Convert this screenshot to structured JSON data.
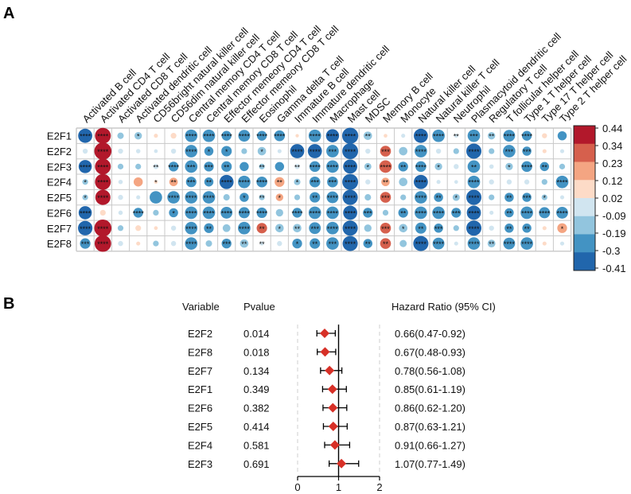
{
  "panel_a_label": "A",
  "panel_b_label": "B",
  "colors": {
    "grid": "#c8c8c8",
    "background": "#ffffff",
    "scale": [
      "#b2182b",
      "#d6604d",
      "#f4a582",
      "#fddbc7",
      "#d1e5f0",
      "#92c5de",
      "#4393c3",
      "#2166ac"
    ],
    "marker": "#d73027"
  },
  "chart_data": [
    {
      "type": "heatmap",
      "title": "",
      "rows": [
        "E2F1",
        "E2F2",
        "E2F3",
        "E2F4",
        "E2F5",
        "E2F6",
        "E2F7",
        "E2F8"
      ],
      "columns": [
        "Activated B cell",
        "Activated CD4 T cell",
        "Activated CD8 T cell",
        "Activated dendritic cell",
        "CD56bright natural killer cell",
        "CD56dim natural killer cell",
        "Central memory CD4 T cell",
        "Central memory CD8 T cell",
        "Effector memeory CD4 T cell",
        "Effector memeory CD8 T cell",
        "Eosinophil",
        "Gamma delta T cell",
        "Immature  B cell",
        "Immature dendritic cell",
        "Macrophage",
        "Mast cell",
        "MDSC",
        "Memory B cell",
        "Monocyte",
        "Natural killer cell",
        "Natural killer T cell",
        "Neutrophil",
        "Plasmacytoid dendritic cell",
        "Regulatory T cell",
        "T follicular helper cell",
        "Type 1 T helper cell",
        "Type 17 T helper cell",
        "Type 2 T helper cell"
      ],
      "values": [
        [
          -0.35,
          0.4,
          -0.12,
          -0.15,
          0.05,
          0.1,
          -0.3,
          -0.3,
          -0.22,
          -0.28,
          -0.22,
          -0.25,
          0.03,
          -0.3,
          -0.32,
          -0.41,
          -0.18,
          0.04,
          -0.05,
          -0.35,
          -0.3,
          -0.05,
          -0.3,
          -0.15,
          -0.28,
          -0.22,
          0.08,
          -0.2
        ],
        [
          -0.08,
          0.44,
          -0.08,
          -0.06,
          -0.04,
          -0.08,
          -0.3,
          -0.2,
          -0.24,
          -0.1,
          -0.18,
          -0.05,
          -0.35,
          -0.35,
          -0.3,
          -0.4,
          -0.08,
          0.25,
          -0.18,
          -0.3,
          -0.08,
          -0.1,
          -0.38,
          -0.1,
          -0.3,
          -0.2,
          0.05,
          -0.05
        ],
        [
          -0.32,
          0.4,
          -0.1,
          -0.1,
          -0.08,
          -0.22,
          -0.3,
          -0.22,
          -0.24,
          -0.2,
          -0.1,
          -0.2,
          -0.08,
          -0.25,
          -0.3,
          -0.35,
          -0.14,
          0.3,
          -0.22,
          -0.25,
          -0.15,
          -0.08,
          -0.3,
          -0.06,
          -0.15,
          -0.25,
          -0.2,
          -0.1
        ],
        [
          -0.1,
          0.4,
          -0.06,
          0.2,
          0.04,
          0.18,
          -0.24,
          -0.2,
          -0.35,
          -0.3,
          -0.25,
          0.22,
          -0.12,
          -0.25,
          -0.25,
          -0.4,
          -0.08,
          0.18,
          -0.18,
          -0.35,
          -0.05,
          -0.04,
          -0.3,
          -0.08,
          -0.08,
          -0.08,
          -0.1,
          -0.3
        ],
        [
          -0.1,
          0.38,
          -0.08,
          -0.05,
          -0.3,
          -0.3,
          -0.3,
          -0.3,
          -0.12,
          -0.2,
          -0.1,
          0.15,
          -0.1,
          -0.24,
          -0.28,
          -0.38,
          -0.12,
          0.25,
          -0.1,
          -0.3,
          -0.2,
          -0.14,
          -0.38,
          -0.1,
          -0.2,
          -0.2,
          -0.1,
          -0.05
        ],
        [
          -0.32,
          0.1,
          -0.06,
          -0.22,
          -0.1,
          -0.2,
          -0.3,
          -0.3,
          -0.28,
          -0.26,
          -0.24,
          -0.15,
          -0.22,
          -0.3,
          -0.3,
          -0.35,
          -0.22,
          -0.1,
          -0.22,
          -0.3,
          -0.3,
          -0.22,
          -0.35,
          -0.05,
          -0.2,
          -0.3,
          -0.26,
          -0.28
        ],
        [
          -0.36,
          0.44,
          -0.1,
          0.1,
          0.04,
          -0.08,
          -0.3,
          -0.22,
          -0.16,
          -0.3,
          0.24,
          -0.18,
          -0.18,
          -0.28,
          -0.3,
          -0.38,
          -0.15,
          0.25,
          -0.18,
          -0.26,
          -0.2,
          -0.1,
          -0.38,
          -0.08,
          -0.2,
          -0.2,
          0.05,
          0.22
        ],
        [
          -0.24,
          0.42,
          -0.08,
          0.05,
          -0.1,
          -0.08,
          -0.3,
          -0.12,
          -0.22,
          -0.18,
          -0.05,
          -0.08,
          -0.22,
          -0.24,
          -0.3,
          -0.38,
          -0.2,
          0.25,
          -0.14,
          -0.38,
          -0.28,
          -0.05,
          -0.3,
          -0.16,
          -0.28,
          -0.3,
          0.05,
          -0.05
        ]
      ],
      "stars": [
        [
          "****",
          "****",
          "",
          "*",
          "",
          "",
          "****",
          "****",
          "****",
          "****",
          "****",
          "****",
          "",
          "****",
          "****",
          "****",
          "**",
          "",
          "",
          "****",
          "****",
          "**",
          "***",
          "**",
          "****",
          "****",
          "",
          ""
        ],
        [
          "",
          "****",
          "",
          "",
          "",
          "",
          "****",
          "*",
          "*",
          "",
          "*",
          "",
          "****",
          "****",
          "***",
          "****",
          "",
          "***",
          "",
          "****",
          "",
          "",
          "****",
          "",
          "***",
          "***",
          "",
          ""
        ],
        [
          "****",
          "****",
          "",
          "",
          "**",
          "****",
          "***",
          "***",
          "**",
          "",
          "**",
          "",
          "**",
          "****",
          "****",
          "****",
          "*",
          "****",
          "**",
          "****",
          "*",
          "",
          "**",
          "",
          "*",
          "****",
          "**",
          ""
        ],
        [
          "*",
          "****",
          "",
          "",
          "*",
          "**",
          "***",
          "**",
          "****",
          "****",
          "****",
          "**",
          "*",
          "***",
          "***",
          "****",
          "",
          "**",
          "",
          "****",
          "",
          "",
          "****",
          "",
          "",
          "",
          "",
          "****"
        ],
        [
          "*",
          "****",
          "",
          "",
          "",
          "****",
          "****",
          "****",
          "",
          "*",
          "**",
          "*",
          "",
          "**",
          "****",
          "****",
          "",
          "***",
          "",
          "****",
          "**",
          "*",
          "****",
          "",
          "**",
          "***",
          "*",
          ""
        ],
        [
          "****",
          "",
          "",
          "****",
          "",
          "*",
          "****",
          "****",
          "****",
          "****",
          "****",
          "",
          "****",
          "****",
          "****",
          "****",
          "***",
          "",
          "**",
          "****",
          "****",
          "***",
          "****",
          "",
          "**",
          "****",
          "****",
          "****"
        ],
        [
          "****",
          "****",
          "",
          "",
          "",
          "",
          "****",
          "**",
          "",
          "****",
          "**",
          "*",
          "**",
          "***",
          "****",
          "****",
          "",
          "***",
          "*",
          "**",
          "***",
          "",
          "****",
          "",
          "**",
          "**",
          "",
          "*"
        ],
        [
          "***",
          "****",
          "",
          "",
          "",
          "",
          "****",
          "",
          "***",
          "**",
          "**",
          "",
          "*",
          "**",
          "***",
          "****",
          "**",
          "**",
          "",
          "****",
          "****",
          "",
          "****",
          "**",
          "****",
          "****",
          "",
          ""
        ]
      ],
      "legend_ticks": [
        "0.44",
        "0.34",
        "0.23",
        "0.12",
        "0.02",
        "-0.09",
        "-0.19",
        "-0.3",
        "-0.41"
      ],
      "vmin": -0.41,
      "vmax": 0.44
    },
    {
      "type": "forest",
      "header_variable": "Variable",
      "header_pvalue": "Pvalue",
      "header_hr": "Hazard Ratio (95% CI)",
      "variables": [
        "E2F2",
        "E2F8",
        "E2F7",
        "E2F1",
        "E2F6",
        "E2F5",
        "E2F4",
        "E2F3"
      ],
      "pvalues": [
        "0.014",
        "0.018",
        "0.134",
        "0.349",
        "0.382",
        "0.414",
        "0.581",
        "0.691"
      ],
      "hr": [
        0.66,
        0.67,
        0.78,
        0.85,
        0.86,
        0.87,
        0.91,
        1.07
      ],
      "ci_low": [
        0.47,
        0.48,
        0.56,
        0.61,
        0.62,
        0.63,
        0.66,
        0.77
      ],
      "ci_high": [
        0.92,
        0.93,
        1.08,
        1.19,
        1.2,
        1.21,
        1.27,
        1.49
      ],
      "hr_labels": [
        "0.66(0.47-0.92)",
        "0.67(0.48-0.93)",
        "0.78(0.56-1.08)",
        "0.85(0.61-1.19)",
        "0.86(0.62-1.20)",
        "0.87(0.63-1.21)",
        "0.91(0.66-1.27)",
        "1.07(0.77-1.49)"
      ],
      "x_ticks": [
        "0",
        "1",
        "2"
      ],
      "xlim": [
        0,
        2
      ],
      "reference_line": 1
    }
  ]
}
